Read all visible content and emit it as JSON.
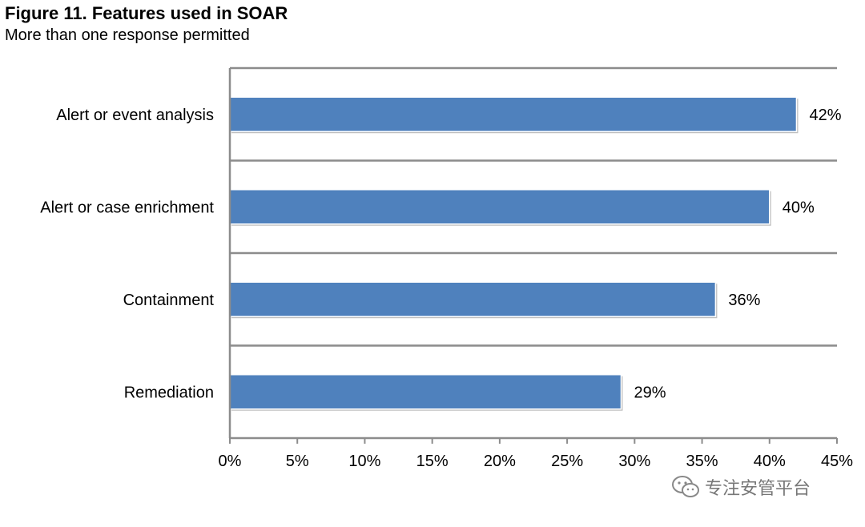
{
  "figure": {
    "title": "Figure 11. Features used in SOAR",
    "subtitle": "More than one response permitted"
  },
  "chart_data": {
    "type": "bar",
    "orientation": "horizontal",
    "title": "Figure 11. Features used in SOAR",
    "subtitle": "More than one response permitted",
    "categories": [
      "Alert or event analysis",
      "Alert or case enrichment",
      "Containment",
      "Remediation"
    ],
    "values": [
      42,
      40,
      36,
      29
    ],
    "value_labels": [
      "42%",
      "40%",
      "36%",
      "29%"
    ],
    "xlim": [
      0,
      45
    ],
    "x_ticks": [
      0,
      5,
      10,
      15,
      20,
      25,
      30,
      35,
      40,
      45
    ],
    "x_tick_labels": [
      "0%",
      "5%",
      "10%",
      "15%",
      "20%",
      "25%",
      "30%",
      "35%",
      "40%",
      "45%"
    ],
    "xlabel": "",
    "ylabel": "",
    "grid": "horizontal separators between categories",
    "bar_color": "#4F81BD"
  },
  "watermark": {
    "text": "专注安管平台",
    "icon": "wechat-icon"
  }
}
